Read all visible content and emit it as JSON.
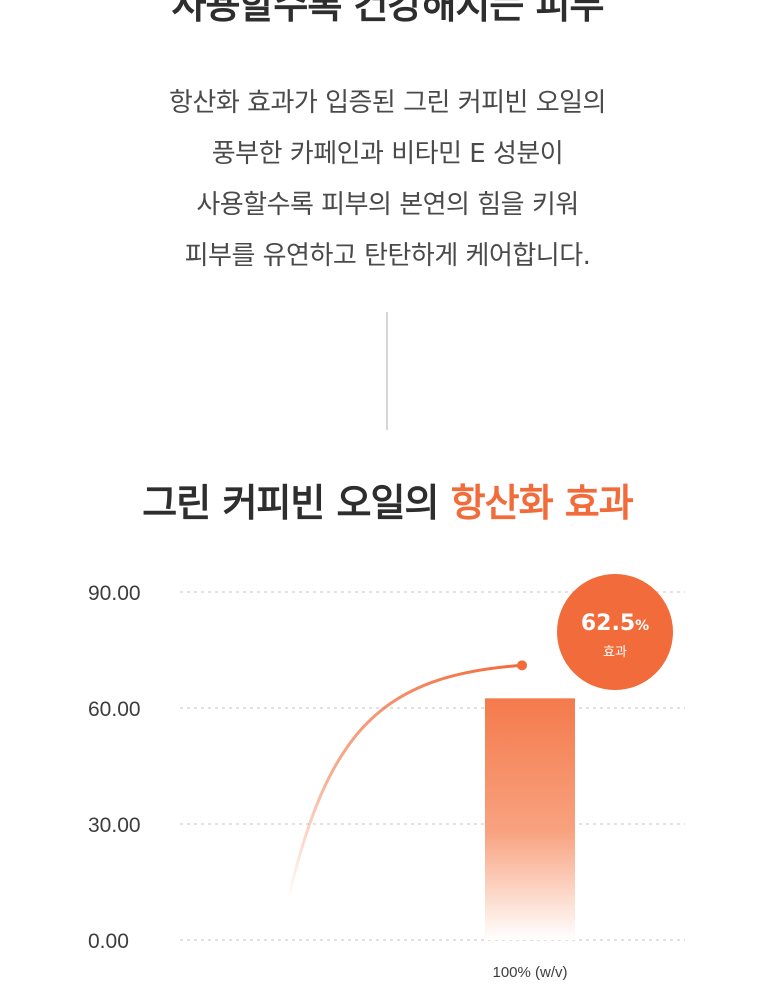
{
  "top_heading": "사용할수록 건강해지는 피부",
  "description": [
    "항산화 효과가 입증된 그린 커피빈 오일의",
    "풍부한 카페인과 비타민 E 성분이",
    "사용할수록 피부의 본연의 힘을 키워",
    "피부를 유연하고 탄탄하게 케어합니다."
  ],
  "section_title": {
    "main": "그린 커피빈 오일의",
    "accent": "항산화 효과"
  },
  "colors": {
    "accent": "#f26b3a",
    "bar_top": "#f47a4c",
    "gridline": "#d9d9d9"
  },
  "chart_data": {
    "type": "bar",
    "categories": [
      "100% (w/v)"
    ],
    "values": [
      62.5
    ],
    "ylim": [
      0,
      90
    ],
    "yticks": [
      "0.00",
      "30.00",
      "60.00",
      "90.00"
    ],
    "ytick_values": [
      0,
      30,
      60,
      90
    ],
    "grid": true,
    "annotation": {
      "value": "62.5",
      "unit": "%",
      "label": "효과"
    }
  }
}
